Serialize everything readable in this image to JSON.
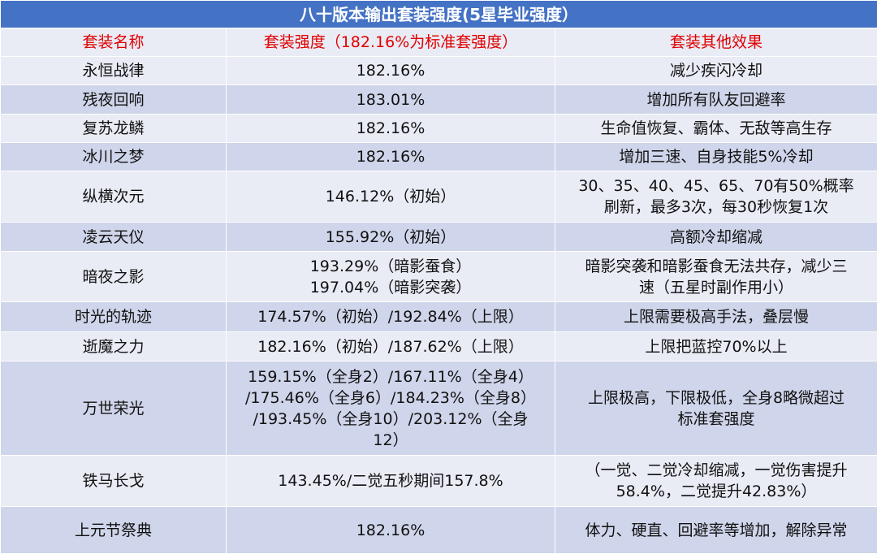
{
  "table": {
    "title": "八十版本输出套装强度(5星毕业强度）",
    "header": [
      "套装名称",
      "套装强度（182.16%为标准套强度）",
      "套装其他效果"
    ],
    "rows": [
      [
        "永恒战律",
        "182.16%",
        "减少疾闪冷却"
      ],
      [
        "残夜回响",
        "183.01%",
        "增加所有队友回避率"
      ],
      [
        "复苏龙鳞",
        "182.16%",
        "生命值恢复、霸体、无敌等高生存"
      ],
      [
        "冰川之梦",
        "182.16%",
        "增加三速、自身技能5%冷却"
      ],
      [
        "纵横次元",
        "146.12%（初始）",
        [
          "30、35、40、45、65、70有50%概率",
          "刷新，最多3次，每30秒恢复1次"
        ]
      ],
      [
        "凌云天仪",
        "155.92%（初始）",
        "高额冷却缩减"
      ],
      [
        "暗夜之影",
        [
          "193.29%（暗影蚕食）",
          "197.04%（暗影突袭）"
        ],
        [
          "暗影突袭和暗影蚕食无法共存，减少三",
          "速（五星时副作用小）"
        ]
      ],
      [
        "时光的轨迹",
        "174.57%（初始）/192.84%（上限）",
        "上限需要极高手法，叠层慢"
      ],
      [
        "逝魔之力",
        "182.16%（初始）/187.62%（上限）",
        "上限把蓝控70%以上"
      ],
      [
        "万世荣光",
        [
          "159.15%（全身2）/167.11%（全身4）",
          "/175.46%（全身6）/184.23%（全身8）",
          "/193.45%（全身10）/203.12%（全身",
          "12）"
        ],
        [
          "上限极高，下限极低，全身8略微超过",
          "标准套强度"
        ]
      ],
      [
        "铁马长戈",
        "143.45%/二觉五秒期间157.8%",
        [
          "（一觉、二觉冷却缩减，一觉伤害提升",
          "58.4%，二觉提升42.83%）"
        ]
      ],
      [
        "上元节祭典",
        "182.16%",
        "体力、硬直、回避率等增加，解除异常"
      ]
    ]
  }
}
